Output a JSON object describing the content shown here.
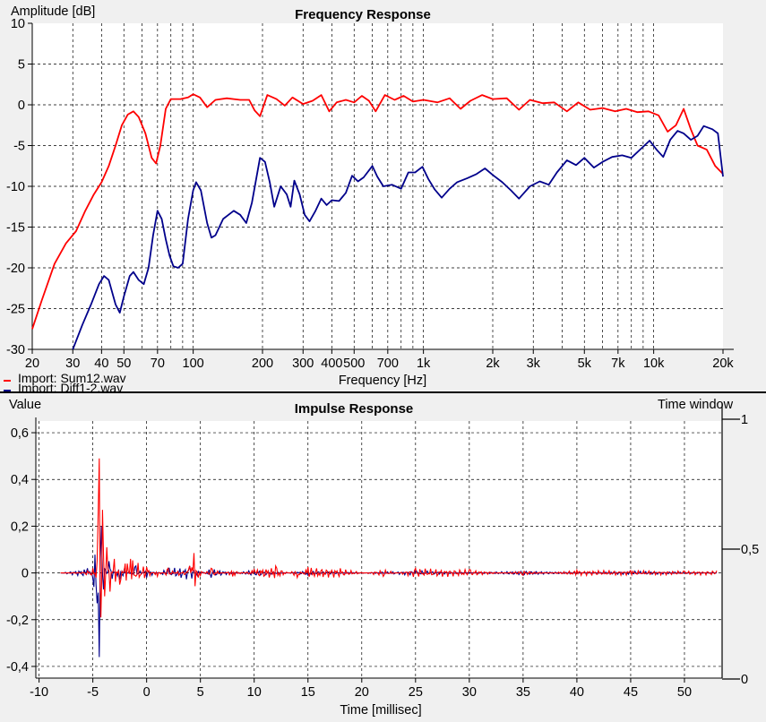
{
  "chart_data": [
    {
      "type": "line",
      "title": "Frequency Response",
      "xlabel": "Frequency [Hz]",
      "ylabel": "Amplitude [dB]",
      "xscale": "log",
      "xlim": [
        20,
        20000
      ],
      "ylim": [
        -30,
        10
      ],
      "yticks": [
        10,
        5,
        0,
        -5,
        -10,
        -15,
        -20,
        -25,
        -30
      ],
      "xtick_labels": [
        {
          "v": 20,
          "t": "20"
        },
        {
          "v": 30,
          "t": "30"
        },
        {
          "v": 40,
          "t": "40"
        },
        {
          "v": 50,
          "t": "50"
        },
        {
          "v": 70,
          "t": "70"
        },
        {
          "v": 100,
          "t": "100"
        },
        {
          "v": 200,
          "t": "200"
        },
        {
          "v": 300,
          "t": "300"
        },
        {
          "v": 400,
          "t": "400"
        },
        {
          "v": 500,
          "t": "500"
        },
        {
          "v": 700,
          "t": "700"
        },
        {
          "v": 1000,
          "t": "1k"
        },
        {
          "v": 2000,
          "t": "2k"
        },
        {
          "v": 3000,
          "t": "3k"
        },
        {
          "v": 5000,
          "t": "5k"
        },
        {
          "v": 7000,
          "t": "7k"
        },
        {
          "v": 10000,
          "t": "10k"
        },
        {
          "v": 20000,
          "t": "20k"
        }
      ],
      "grid": true,
      "legend_position": "bottom-left",
      "series": [
        {
          "name": "Import: Sum12.wav",
          "color": "#ff0000",
          "points": [
            [
              20,
              -27.5
            ],
            [
              22,
              -24
            ],
            [
              25,
              -19.5
            ],
            [
              28,
              -17
            ],
            [
              31,
              -15.5
            ],
            [
              34,
              -13
            ],
            [
              37,
              -11
            ],
            [
              40,
              -9.5
            ],
            [
              43,
              -7.5
            ],
            [
              46,
              -5
            ],
            [
              49,
              -2.5
            ],
            [
              52,
              -1.2
            ],
            [
              55,
              -0.8
            ],
            [
              58,
              -1.5
            ],
            [
              62,
              -3.5
            ],
            [
              66,
              -6.5
            ],
            [
              69,
              -7.2
            ],
            [
              72,
              -5
            ],
            [
              76,
              -0.5
            ],
            [
              80,
              0.7
            ],
            [
              88,
              0.7
            ],
            [
              95,
              0.9
            ],
            [
              100,
              1.3
            ],
            [
              107,
              0.9
            ],
            [
              115,
              -0.3
            ],
            [
              125,
              0.6
            ],
            [
              140,
              0.8
            ],
            [
              160,
              0.6
            ],
            [
              175,
              0.6
            ],
            [
              185,
              -0.7
            ],
            [
              195,
              -1.4
            ],
            [
              210,
              1.2
            ],
            [
              230,
              0.7
            ],
            [
              250,
              -0.1
            ],
            [
              270,
              0.9
            ],
            [
              300,
              0.1
            ],
            [
              330,
              0.5
            ],
            [
              360,
              1.2
            ],
            [
              390,
              -0.8
            ],
            [
              420,
              0.3
            ],
            [
              460,
              0.6
            ],
            [
              500,
              0.3
            ],
            [
              540,
              1.1
            ],
            [
              580,
              0.5
            ],
            [
              620,
              -0.8
            ],
            [
              680,
              1.2
            ],
            [
              750,
              0.6
            ],
            [
              820,
              1.1
            ],
            [
              900,
              0.4
            ],
            [
              1000,
              0.6
            ],
            [
              1150,
              0.3
            ],
            [
              1300,
              0.8
            ],
            [
              1450,
              -0.5
            ],
            [
              1600,
              0.5
            ],
            [
              1800,
              1.2
            ],
            [
              2000,
              0.7
            ],
            [
              2300,
              0.8
            ],
            [
              2600,
              -0.6
            ],
            [
              2900,
              0.6
            ],
            [
              3300,
              0.2
            ],
            [
              3700,
              0.3
            ],
            [
              4200,
              -0.8
            ],
            [
              4700,
              0.3
            ],
            [
              5300,
              -0.6
            ],
            [
              6000,
              -0.4
            ],
            [
              6800,
              -0.8
            ],
            [
              7600,
              -0.5
            ],
            [
              8500,
              -0.9
            ],
            [
              9500,
              -0.8
            ],
            [
              10500,
              -1.3
            ],
            [
              11500,
              -3.3
            ],
            [
              12500,
              -2.5
            ],
            [
              13500,
              -0.5
            ],
            [
              14500,
              -3
            ],
            [
              15500,
              -5
            ],
            [
              17000,
              -5.5
            ],
            [
              18500,
              -7.5
            ],
            [
              20000,
              -8.5
            ]
          ]
        },
        {
          "name": "Import: Diff1-2.wav",
          "color": "#00008b",
          "points": [
            [
              30,
              -30
            ],
            [
              33,
              -27
            ],
            [
              36,
              -24.5
            ],
            [
              39,
              -22
            ],
            [
              41,
              -21
            ],
            [
              43,
              -21.5
            ],
            [
              46,
              -24.5
            ],
            [
              48,
              -25.5
            ],
            [
              50,
              -23.5
            ],
            [
              53,
              -21
            ],
            [
              55,
              -20.5
            ],
            [
              58,
              -21.5
            ],
            [
              61,
              -22
            ],
            [
              64,
              -20
            ],
            [
              67,
              -16
            ],
            [
              70,
              -13
            ],
            [
              73,
              -14
            ],
            [
              76,
              -16.5
            ],
            [
              79,
              -18.5
            ],
            [
              82,
              -19.8
            ],
            [
              86,
              -20
            ],
            [
              90,
              -19.5
            ],
            [
              95,
              -14
            ],
            [
              100,
              -10.5
            ],
            [
              103,
              -9.5
            ],
            [
              108,
              -10.5
            ],
            [
              115,
              -14.5
            ],
            [
              120,
              -16.3
            ],
            [
              125,
              -16
            ],
            [
              135,
              -14
            ],
            [
              150,
              -13
            ],
            [
              160,
              -13.5
            ],
            [
              170,
              -14.5
            ],
            [
              180,
              -12
            ],
            [
              195,
              -6.5
            ],
            [
              205,
              -7
            ],
            [
              215,
              -9.5
            ],
            [
              225,
              -12.5
            ],
            [
              240,
              -10
            ],
            [
              255,
              -11
            ],
            [
              265,
              -12.5
            ],
            [
              275,
              -9.3
            ],
            [
              290,
              -11
            ],
            [
              305,
              -13.5
            ],
            [
              320,
              -14.3
            ],
            [
              340,
              -13
            ],
            [
              360,
              -11.5
            ],
            [
              380,
              -12.3
            ],
            [
              400,
              -11.7
            ],
            [
              430,
              -11.8
            ],
            [
              460,
              -10.8
            ],
            [
              490,
              -8.7
            ],
            [
              520,
              -9.4
            ],
            [
              550,
              -8.9
            ],
            [
              600,
              -7.5
            ],
            [
              630,
              -8.8
            ],
            [
              670,
              -10
            ],
            [
              730,
              -9.8
            ],
            [
              800,
              -10.3
            ],
            [
              860,
              -8.3
            ],
            [
              920,
              -8.3
            ],
            [
              990,
              -7.6
            ],
            [
              1050,
              -9.1
            ],
            [
              1120,
              -10.4
            ],
            [
              1200,
              -11.4
            ],
            [
              1300,
              -10.3
            ],
            [
              1400,
              -9.5
            ],
            [
              1550,
              -9
            ],
            [
              1700,
              -8.5
            ],
            [
              1850,
              -7.8
            ],
            [
              2000,
              -8.6
            ],
            [
              2200,
              -9.5
            ],
            [
              2400,
              -10.5
            ],
            [
              2600,
              -11.5
            ],
            [
              2900,
              -10
            ],
            [
              3200,
              -9.4
            ],
            [
              3500,
              -9.8
            ],
            [
              3800,
              -8.3
            ],
            [
              4200,
              -6.8
            ],
            [
              4600,
              -7.4
            ],
            [
              5000,
              -6.5
            ],
            [
              5500,
              -7.7
            ],
            [
              6000,
              -7
            ],
            [
              6600,
              -6.4
            ],
            [
              7300,
              -6.2
            ],
            [
              8000,
              -6.5
            ],
            [
              8800,
              -5.4
            ],
            [
              9600,
              -4.4
            ],
            [
              10300,
              -5.5
            ],
            [
              11000,
              -6.4
            ],
            [
              11800,
              -4.3
            ],
            [
              12700,
              -3.2
            ],
            [
              13500,
              -3.5
            ],
            [
              14500,
              -4.3
            ],
            [
              15500,
              -3.8
            ],
            [
              16500,
              -2.6
            ],
            [
              18000,
              -3
            ],
            [
              19000,
              -3.5
            ],
            [
              20000,
              -8.8
            ]
          ]
        }
      ]
    },
    {
      "type": "line",
      "title": "Impulse Response",
      "xlabel": "Time [millisec]",
      "ylabel": "Value",
      "xlim": [
        -10.3,
        53.5
      ],
      "ylim": [
        -0.45,
        0.65
      ],
      "xticks": [
        -10,
        -5,
        0,
        5,
        10,
        15,
        20,
        25,
        30,
        35,
        40,
        45,
        50
      ],
      "yticks": [
        0.6,
        0.4,
        0.2,
        0,
        -0.2,
        -0.4
      ],
      "ytick_labels": [
        "0,6",
        "0,4",
        "0,2",
        "0",
        "-0,2",
        "-0,4"
      ],
      "right_axis": {
        "label": "Time window",
        "ticks": [
          1,
          0.5,
          0
        ],
        "tick_labels": [
          "1",
          "0,5",
          "0"
        ]
      },
      "grid": true,
      "series": [
        {
          "name": "Import: Diff1-2.wav",
          "color": "#00008b",
          "points": [
            [
              -8,
              0
            ],
            [
              -5.5,
              0.02
            ],
            [
              -4.9,
              -0.06
            ],
            [
              -4.6,
              -0.13
            ],
            [
              -4.4,
              -0.36
            ],
            [
              -4.2,
              0.2
            ],
            [
              -4,
              -0.07
            ],
            [
              -3.5,
              0.05
            ],
            [
              -2.5,
              -0.03
            ],
            [
              -1,
              0.03
            ],
            [
              0,
              -0.02
            ],
            [
              2,
              0.02
            ],
            [
              4,
              0.03
            ],
            [
              6,
              -0.02
            ],
            [
              10,
              0.015
            ],
            [
              15,
              -0.01
            ],
            [
              25,
              0.01
            ],
            [
              35,
              -0.01
            ],
            [
              45,
              0.008
            ],
            [
              53,
              0
            ]
          ]
        },
        {
          "name": "Import: Sum12.wav",
          "color": "#ff0000",
          "points": [
            [
              -8,
              0
            ],
            [
              -6,
              0.003
            ],
            [
              -5,
              0.02
            ],
            [
              -4.6,
              0.05
            ],
            [
              -4.4,
              0.49
            ],
            [
              -4.25,
              -0.19
            ],
            [
              -4.1,
              0.27
            ],
            [
              -3.9,
              -0.1
            ],
            [
              -3.7,
              0.11
            ],
            [
              -3.4,
              -0.08
            ],
            [
              -3,
              0.06
            ],
            [
              -2.5,
              -0.05
            ],
            [
              -2,
              0.04
            ],
            [
              -1.5,
              0.06
            ],
            [
              0,
              0.025
            ],
            [
              1,
              -0.015
            ],
            [
              2,
              0.02
            ],
            [
              3,
              -0.01
            ],
            [
              4,
              0.03
            ],
            [
              4.4,
              0.085
            ],
            [
              4.8,
              -0.02
            ],
            [
              6,
              0.02
            ],
            [
              8,
              -0.015
            ],
            [
              10,
              0.015
            ],
            [
              12,
              0.03
            ],
            [
              14,
              -0.02
            ],
            [
              15,
              0.025
            ],
            [
              18,
              0.02
            ],
            [
              22,
              -0.015
            ],
            [
              25,
              0.02
            ],
            [
              30,
              0.015
            ],
            [
              35,
              -0.01
            ],
            [
              40,
              0.012
            ],
            [
              45,
              0.01
            ],
            [
              50,
              0.008
            ],
            [
              53,
              0.01
            ]
          ]
        }
      ]
    }
  ]
}
